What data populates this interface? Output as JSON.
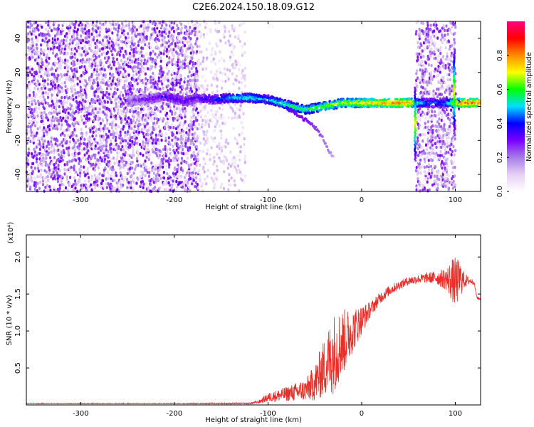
{
  "figure_title": "C2E6.2024.150.18.09.G12",
  "chart_data": [
    {
      "type": "heatmap",
      "name": "spectrogram",
      "xlabel": "Height of straight line (km)",
      "ylabel": "Frequency (Hz)",
      "xlim": [
        -358,
        127
      ],
      "ylim": [
        -50,
        50
      ],
      "x_ticks": [
        -300,
        -200,
        -100,
        0,
        100
      ],
      "x_tick_labels": [
        "-300",
        "-200",
        "-100",
        "0",
        "100"
      ],
      "y_ticks": [
        -40,
        -20,
        0,
        20,
        40
      ],
      "y_tick_labels": [
        "-40",
        "-20",
        "0",
        "20",
        "40"
      ],
      "colorbar": {
        "label": "Normalized spectral amplitude",
        "range": [
          0,
          1
        ],
        "ticks": [
          0.0,
          0.2,
          0.4,
          0.6,
          0.8
        ],
        "tick_labels": [
          "0.0",
          "0.2",
          "0.4",
          "0.6",
          "0.8"
        ],
        "colormap": [
          "#ffffff",
          "#e6d0f5",
          "#a87ce8",
          "#7a00ff",
          "#0000ff",
          "#00e0ff",
          "#00ff00",
          "#ffff00",
          "#ff8c00",
          "#ff0000",
          "#ff0080"
        ]
      },
      "noise_regions": [
        {
          "x": [
            -358,
            -175
          ],
          "density": 0.9,
          "amp": [
            0.05,
            0.32
          ]
        },
        {
          "x": [
            -175,
            -125
          ],
          "density": 0.4,
          "amp": [
            0.03,
            0.15
          ]
        },
        {
          "x": [
            58,
            100
          ],
          "density": 0.85,
          "amp": [
            0.05,
            0.3
          ]
        }
      ],
      "signal_trace": {
        "x": [
          -250,
          -230,
          -210,
          -190,
          -175,
          -160,
          -140,
          -120,
          -100,
          -80,
          -60,
          -40,
          -20,
          0,
          20,
          40,
          52,
          60,
          70,
          80,
          90,
          97,
          105,
          115,
          127
        ],
        "y": [
          3,
          4,
          6,
          3,
          5,
          4,
          5,
          5,
          4,
          1,
          -2,
          0,
          2,
          2,
          2,
          2,
          2,
          2,
          2,
          2,
          2,
          2,
          2,
          2,
          2
        ],
        "amp": [
          0.2,
          0.25,
          0.3,
          0.3,
          0.3,
          0.35,
          0.45,
          0.5,
          0.45,
          0.55,
          0.55,
          0.6,
          0.65,
          0.7,
          0.75,
          0.8,
          0.8,
          0.5,
          0.4,
          0.4,
          0.4,
          0.6,
          0.8,
          0.8,
          0.8
        ]
      },
      "branch_trace": {
        "x": [
          -80,
          -70,
          -60,
          -50,
          -45,
          -40,
          -35,
          -30
        ],
        "y": [
          -1,
          -4,
          -8,
          -12,
          -16,
          -20,
          -26,
          -30
        ],
        "amp": [
          0.35,
          0.3,
          0.3,
          0.25,
          0.25,
          0.2,
          0.2,
          0.15
        ]
      },
      "vertical_streaks": [
        {
          "x": 57,
          "y_range": [
            -32,
            12
          ]
        },
        {
          "x": 99,
          "y_range": [
            -16,
            34
          ]
        },
        {
          "x": 104,
          "y_range": [
            -2,
            4
          ]
        }
      ]
    },
    {
      "type": "line",
      "name": "snr",
      "xlabel": "Height of straight line (km)",
      "ylabel": "SNR (10 * v/v)",
      "scale_label": "(x10⁴)",
      "xlim": [
        -358,
        127
      ],
      "ylim": [
        0,
        2.3
      ],
      "x_ticks": [
        -300,
        -200,
        -100,
        0,
        100
      ],
      "x_tick_labels": [
        "-300",
        "-200",
        "-100",
        "0",
        "100"
      ],
      "y_ticks": [
        0.5,
        1.0,
        1.5,
        2.0
      ],
      "y_tick_labels": [
        "0.5",
        "1.0",
        "1.5",
        "2.0"
      ],
      "color": "#e8302a",
      "envelope": {
        "x": [
          -358,
          -200,
          -120,
          -110,
          -100,
          -80,
          -60,
          -50,
          -40,
          -30,
          -20,
          -10,
          0,
          10,
          20,
          30,
          40,
          50,
          60,
          70,
          80,
          90,
          97,
          100,
          105,
          110,
          115,
          120,
          123,
          127
        ],
        "base": [
          0.02,
          0.02,
          0.02,
          0.04,
          0.1,
          0.15,
          0.2,
          0.3,
          0.5,
          0.7,
          0.85,
          1.0,
          1.15,
          1.3,
          1.45,
          1.55,
          1.62,
          1.68,
          1.7,
          1.72,
          1.72,
          1.7,
          1.68,
          1.65,
          1.7,
          1.68,
          1.68,
          1.66,
          1.45,
          1.43
        ],
        "noise": [
          0.005,
          0.005,
          0.01,
          0.02,
          0.06,
          0.1,
          0.15,
          0.25,
          0.4,
          0.55,
          0.45,
          0.3,
          0.2,
          0.1,
          0.08,
          0.07,
          0.06,
          0.06,
          0.06,
          0.07,
          0.09,
          0.15,
          0.3,
          0.35,
          0.25,
          0.1,
          0.05,
          0.03,
          0.02,
          0.02
        ]
      }
    }
  ]
}
